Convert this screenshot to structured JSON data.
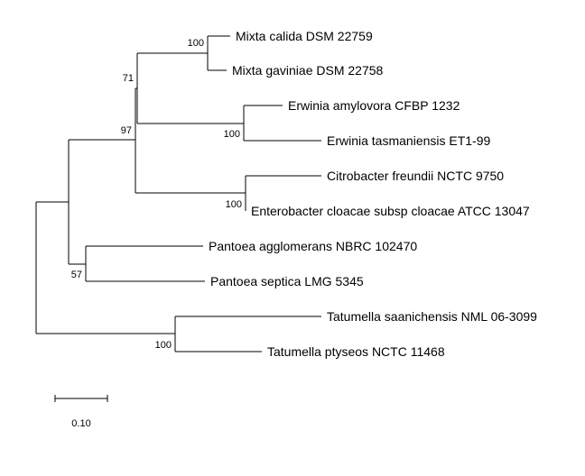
{
  "tree": {
    "taxa": [
      "Mixta calida DSM 22759",
      "Mixta gaviniae DSM 22758",
      "Erwinia amylovora CFBP 1232",
      "Erwinia tasmaniensis ET1-99",
      "Citrobacter freundii NCTC 9750",
      "Enterobacter cloacae subsp cloacae ATCC 13047",
      "Pantoea agglomerans NBRC 102470",
      "Pantoea septica LMG 5345",
      "Tatumella saanichensis NML 06-3099",
      "Tatumella ptyseos NCTC 11468"
    ],
    "support_values": [
      "100",
      "71",
      "100",
      "97",
      "100",
      "57",
      "100"
    ],
    "scale_bar": {
      "label": "0.10",
      "length": 0.1
    },
    "line_color": "#000000"
  }
}
